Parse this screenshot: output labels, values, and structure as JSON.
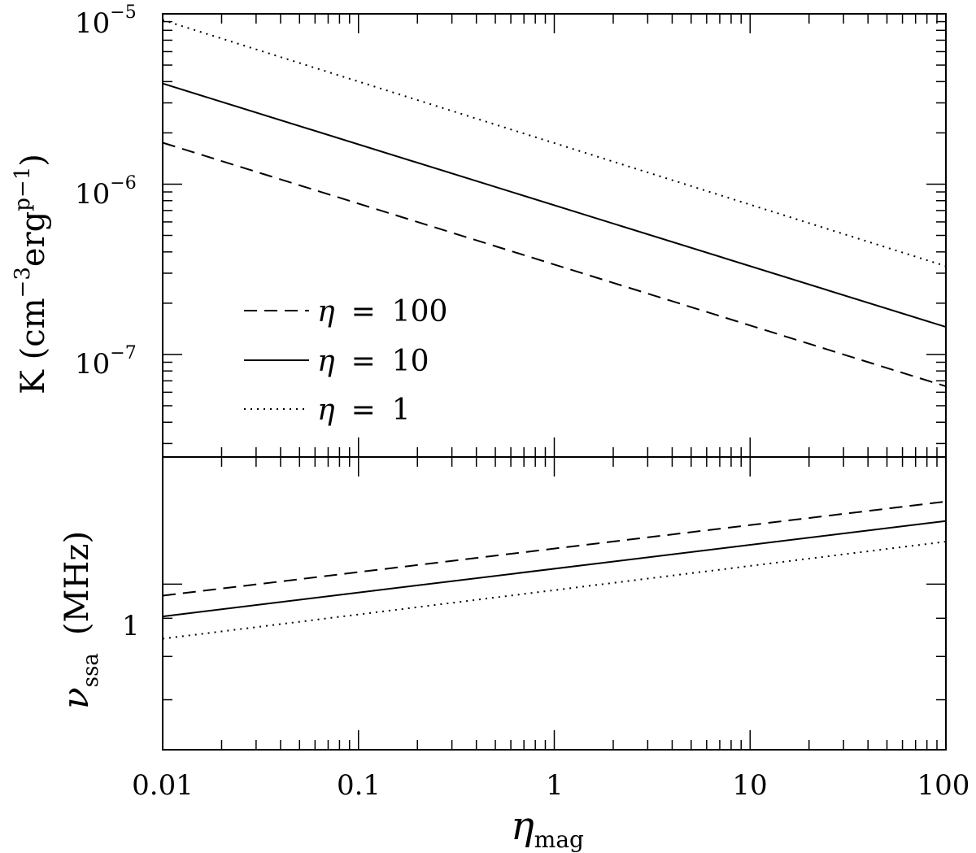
{
  "chart_data": [
    {
      "type": "line",
      "panel": "top",
      "x_scale": "log",
      "y_scale": "log",
      "xlim": [
        0.01,
        100
      ],
      "ylim": [
        2.5e-08,
        1e-05
      ],
      "ylabel": {
        "main": "K (cm",
        "exp1": "−3",
        "mid": "erg",
        "exp2": "p−1",
        "end": ")"
      },
      "y_ticklabels": [
        {
          "value": 1e-05,
          "base": "10",
          "exp": "−5"
        },
        {
          "value": 1e-06,
          "base": "10",
          "exp": "−6"
        },
        {
          "value": 1e-07,
          "base": "10",
          "exp": "−7"
        }
      ],
      "legend_position": "lower-left",
      "series": [
        {
          "name": "η = 100",
          "symbol": "η",
          "eq": "=",
          "num": "100",
          "style": "dashed",
          "x": [
            0.01,
            100
          ],
          "y": [
            1.75e-06,
            6.5e-08
          ]
        },
        {
          "name": "η = 10",
          "symbol": "η",
          "eq": "=",
          "num": "10",
          "style": "solid",
          "x": [
            0.01,
            100
          ],
          "y": [
            3.9e-06,
            1.45e-07
          ]
        },
        {
          "name": "η = 1",
          "symbol": "η",
          "eq": "=",
          "num": "1",
          "style": "dotted",
          "x": [
            0.01,
            100
          ],
          "y": [
            9.2e-06,
            3.3e-07
          ]
        }
      ]
    },
    {
      "type": "line",
      "panel": "bottom",
      "x_scale": "log",
      "y_scale": "log",
      "xlim": [
        0.01,
        100
      ],
      "ylim": [
        0.6,
        1.48
      ],
      "ylabel": {
        "symbol": "ν",
        "sub": "ssa",
        "unit": "(MHz)"
      },
      "xlabel": {
        "symbol": "η",
        "sub": "mag"
      },
      "x_ticklabels": [
        "0.01",
        "0.1",
        "1",
        "10",
        "100"
      ],
      "y_ticklabels": [
        "1"
      ],
      "series": [
        {
          "name": "η = 100",
          "style": "dashed",
          "x": [
            0.01,
            100
          ],
          "y": [
            0.965,
            1.29
          ]
        },
        {
          "name": "η = 10",
          "style": "solid",
          "x": [
            0.01,
            100
          ],
          "y": [
            0.905,
            1.215
          ]
        },
        {
          "name": "η = 1",
          "style": "dotted",
          "x": [
            0.01,
            100
          ],
          "y": [
            0.845,
            1.14
          ]
        }
      ]
    }
  ]
}
